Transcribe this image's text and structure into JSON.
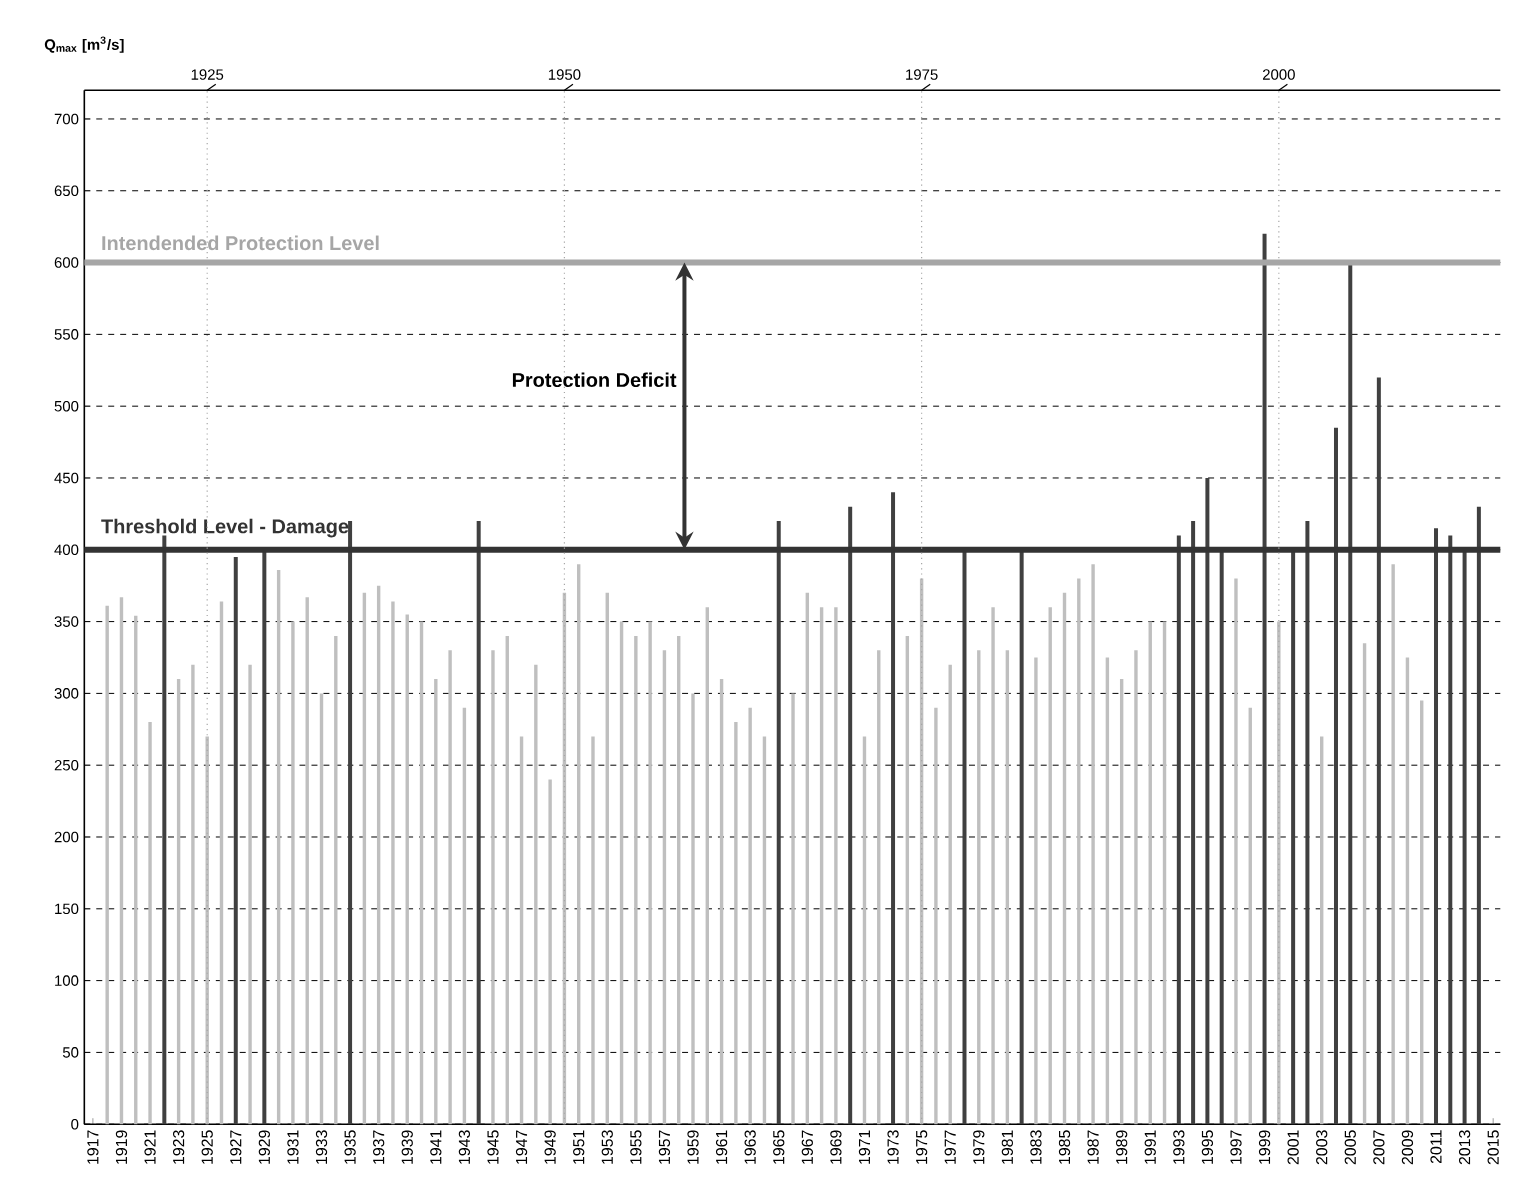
{
  "chart_data": {
    "type": "bar",
    "ylabel": "Q$_{max}$ [m$^{3}$/s]",
    "categories": [
      "1917",
      null,
      "1919",
      null,
      "1921",
      null,
      "1923",
      null,
      "1925",
      null,
      "1927",
      null,
      "1929",
      null,
      "1931",
      null,
      "1933",
      null,
      "1935",
      null,
      "1937",
      null,
      "1939",
      null,
      "1941",
      null,
      "1943",
      null,
      "1945",
      null,
      "1947",
      null,
      "1949",
      null,
      "1951",
      null,
      "1953",
      null,
      "1955",
      null,
      "1957",
      null,
      "1959",
      null,
      "1961",
      null,
      "1963",
      null,
      "1965",
      null,
      "1967",
      null,
      "1969",
      null,
      "1971",
      null,
      "1973",
      null,
      "1975",
      null,
      "1977",
      null,
      "1979",
      null,
      "1981",
      null,
      "1983",
      null,
      "1985",
      null,
      "1987",
      null,
      "1989",
      null,
      "1991",
      null,
      "1993",
      null,
      "1995",
      null,
      "1997",
      null,
      "1999",
      null,
      "2001",
      null,
      "2003",
      null,
      "2005",
      null,
      "2007",
      null,
      "2009",
      null,
      "2011",
      null,
      "2013",
      null,
      "2015"
    ],
    "values": [
      null,
      361,
      367,
      354,
      280,
      410,
      310,
      320,
      270,
      364,
      395,
      320,
      400,
      386,
      350,
      367,
      300,
      340,
      420,
      370,
      375,
      364,
      355,
      350,
      310,
      330,
      290,
      420,
      330,
      340,
      270,
      320,
      240,
      370,
      390,
      270,
      370,
      350,
      340,
      350,
      330,
      340,
      300,
      360,
      310,
      280,
      290,
      270,
      420,
      300,
      370,
      360,
      360,
      430,
      270,
      330,
      440,
      340,
      380,
      290,
      320,
      400,
      330,
      360,
      330,
      400,
      325,
      360,
      370,
      380,
      390,
      325,
      310,
      330,
      350,
      350,
      410,
      420,
      450,
      400,
      380,
      290,
      620,
      350,
      400,
      420,
      270,
      485,
      600,
      335,
      520,
      390,
      325,
      295,
      415,
      410,
      400,
      430,
      null
    ],
    "colors": [
      "#bfbfbf",
      "#bfbfbf",
      "#bfbfbf",
      "#bfbfbf",
      "#bfbfbf",
      "#404040",
      "#bfbfbf",
      "#bfbfbf",
      "#bfbfbf",
      "#bfbfbf",
      "#404040",
      "#bfbfbf",
      "#404040",
      "#bfbfbf",
      "#bfbfbf",
      "#bfbfbf",
      "#bfbfbf",
      "#bfbfbf",
      "#404040",
      "#bfbfbf",
      "#bfbfbf",
      "#bfbfbf",
      "#bfbfbf",
      "#bfbfbf",
      "#bfbfbf",
      "#bfbfbf",
      "#bfbfbf",
      "#404040",
      "#bfbfbf",
      "#bfbfbf",
      "#bfbfbf",
      "#bfbfbf",
      "#bfbfbf",
      "#bfbfbf",
      "#bfbfbf",
      "#bfbfbf",
      "#bfbfbf",
      "#bfbfbf",
      "#bfbfbf",
      "#bfbfbf",
      "#bfbfbf",
      "#bfbfbf",
      "#bfbfbf",
      "#bfbfbf",
      "#bfbfbf",
      "#bfbfbf",
      "#bfbfbf",
      "#bfbfbf",
      "#404040",
      "#bfbfbf",
      "#bfbfbf",
      "#bfbfbf",
      "#bfbfbf",
      "#404040",
      "#bfbfbf",
      "#bfbfbf",
      "#404040",
      "#bfbfbf",
      "#bfbfbf",
      "#bfbfbf",
      "#bfbfbf",
      "#404040",
      "#bfbfbf",
      "#bfbfbf",
      "#bfbfbf",
      "#404040",
      "#bfbfbf",
      "#bfbfbf",
      "#bfbfbf",
      "#bfbfbf",
      "#bfbfbf",
      "#bfbfbf",
      "#bfbfbf",
      "#bfbfbf",
      "#bfbfbf",
      "#bfbfbf",
      "#404040",
      "#404040",
      "#404040",
      "#404040",
      "#bfbfbf",
      "#bfbfbf",
      "#404040",
      "#bfbfbf",
      "#404040",
      "#404040",
      "#bfbfbf",
      "#404040",
      "#404040",
      "#bfbfbf",
      "#404040",
      "#bfbfbf",
      "#bfbfbf",
      "#bfbfbf",
      "#404040",
      "#404040",
      "#404040",
      "#404040",
      "#bfbfbf"
    ],
    "ylim": [
      0,
      720
    ],
    "yticks": [
      0,
      50,
      100,
      150,
      200,
      250,
      300,
      350,
      400,
      450,
      500,
      550,
      600,
      650,
      700
    ],
    "x2lim": [
      1916.4,
      2015.5
    ],
    "x2ticks": [
      1925,
      1950,
      1975,
      2000
    ],
    "grid": true,
    "ref_lines": [
      {
        "axis": "y",
        "value": 600,
        "label": "Intendended Protection Level",
        "color": "#a6a6a6"
      },
      {
        "axis": "y",
        "value": 400,
        "label": "Threshold Level - Damage",
        "color": "#333333"
      }
    ],
    "annotations": [
      "Protection Deficit"
    ]
  }
}
